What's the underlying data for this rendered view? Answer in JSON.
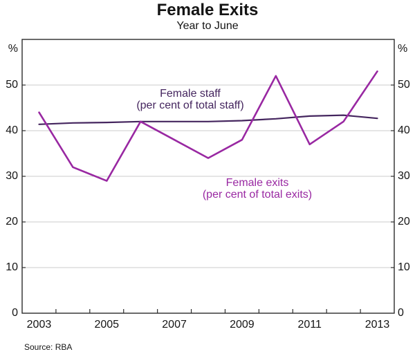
{
  "header": {
    "title": "Female Exits",
    "subtitle": "Year to June"
  },
  "footer": {
    "source": "Source: RBA"
  },
  "chart_data": {
    "type": "line",
    "x": [
      2003,
      2004,
      2005,
      2006,
      2007,
      2008,
      2009,
      2010,
      2011,
      2012,
      2013
    ],
    "series": [
      {
        "name": "Female staff",
        "label": [
          "Female staff",
          "(per cent of total staff)"
        ],
        "color": "#44255e",
        "values": [
          41.4,
          41.7,
          41.8,
          42.0,
          42.0,
          42.0,
          42.2,
          42.6,
          43.2,
          43.4,
          42.7
        ]
      },
      {
        "name": "Female exits",
        "label": [
          "Female exits",
          "(per cent of total exits)"
        ],
        "color": "#9928a2",
        "values": [
          44,
          32,
          29,
          42,
          38,
          34,
          38,
          52,
          37,
          42,
          53
        ]
      }
    ],
    "ylim": [
      0,
      60
    ],
    "yticks": [
      0,
      10,
      20,
      30,
      40,
      50
    ],
    "y_unit_left": "%",
    "y_unit_right": "%",
    "xtick_labels": [
      "2003",
      "2005",
      "2007",
      "2009",
      "2011",
      "2013"
    ],
    "grid": "horizontal gridlines at 10,20,30,40,50",
    "axis_color": "#2b2b2b",
    "grid_color": "#cbcbcb",
    "legend_position": "inline annotations on plot"
  }
}
